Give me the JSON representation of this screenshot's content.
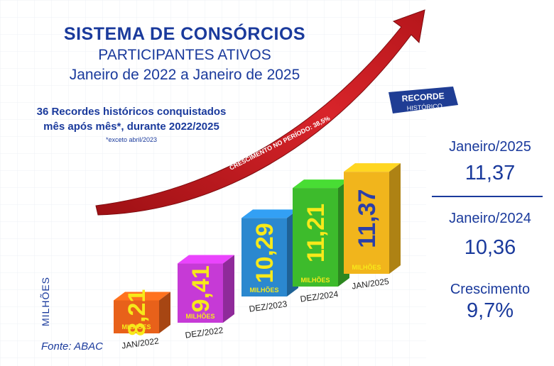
{
  "header": {
    "title": "SISTEMA DE CONSÓRCIOS",
    "subtitle": "PARTICIPANTES ATIVOS",
    "period": "Janeiro de 2022 a Janeiro de 2025"
  },
  "records": {
    "line1": "36 Recordes históricos conquistados",
    "line2": "mês após mês*, durante 2022/2025",
    "footnote": "*exceto abril/2023"
  },
  "badge": {
    "line1": "RECORDE",
    "line2": "HISTÓRICO"
  },
  "arrow_label": "CRESCIMENTO NO PERÍODO: 38,5%",
  "source": "Fonte: ABAC",
  "side": {
    "first_label": "Janeiro/2025",
    "first_value": "11,37",
    "second_label": "Janeiro/2024",
    "second_value": "10,36",
    "growth_label": "Crescimento",
    "growth_value": "9,7%"
  },
  "colors": {
    "title": "#1a3a9c",
    "arrow": "#c8171c",
    "bars": [
      "#e8611a",
      "#c63ad6",
      "#2b88cf",
      "#3dbb2c",
      "#f1b51c"
    ],
    "bar_value_text": [
      "#f7e91a",
      "#f7e91a",
      "#f7e91a",
      "#f7e91a",
      "#2b3fa8"
    ]
  },
  "chart_data": {
    "type": "bar",
    "categories": [
      "JAN/2022",
      "DEZ/2022",
      "DEZ/2023",
      "DEZ/2024",
      "JAN/2025"
    ],
    "values": [
      8.21,
      9.41,
      10.29,
      11.21,
      11.37
    ],
    "value_labels": [
      "8,21",
      "9,41",
      "10,29",
      "11,21",
      "11,37"
    ],
    "unit_label": "MILHÕES",
    "ylabel": "MILHÕES",
    "title": "SISTEMA DE CONSÓRCIOS",
    "grid": false
  }
}
